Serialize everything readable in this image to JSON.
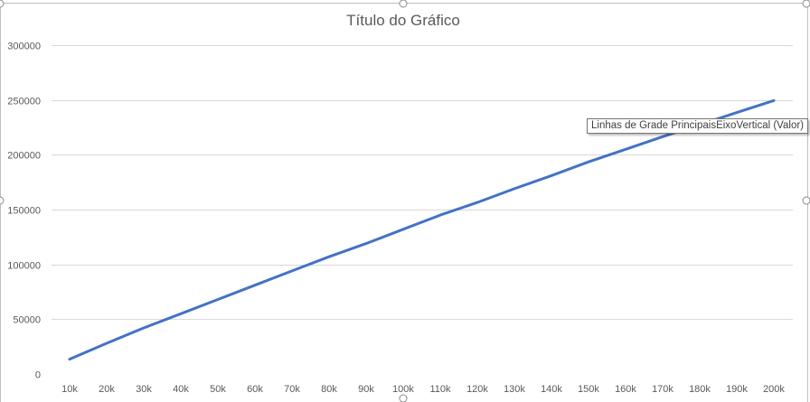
{
  "colors": {
    "series": "#4472c4",
    "grid": "#d9d9d9",
    "text": "#595959"
  },
  "tooltip": {
    "text": "Linhas de Grade PrincipaisEixoVertical (Valor)"
  },
  "chart_data": {
    "type": "line",
    "title": "Título do Gráfico",
    "xlabel": "",
    "ylabel": "",
    "grid": true,
    "legend": false,
    "ylim": [
      0,
      300000
    ],
    "y_ticks": [
      "0",
      "50000",
      "100000",
      "150000",
      "200000",
      "250000",
      "300000"
    ],
    "categories": [
      "10k",
      "20k",
      "30k",
      "40k",
      "50k",
      "60k",
      "70k",
      "80k",
      "90k",
      "100k",
      "110k",
      "120k",
      "130k",
      "140k",
      "150k",
      "160k",
      "170k",
      "180k",
      "190k",
      "200k"
    ],
    "series": [
      {
        "values": [
          13500,
          28000,
          42000,
          55000,
          68000,
          81000,
          94000,
          107000,
          119000,
          132000,
          145000,
          156500,
          169000,
          181000,
          193500,
          205000,
          216500,
          227500,
          238500,
          249500
        ]
      }
    ]
  }
}
